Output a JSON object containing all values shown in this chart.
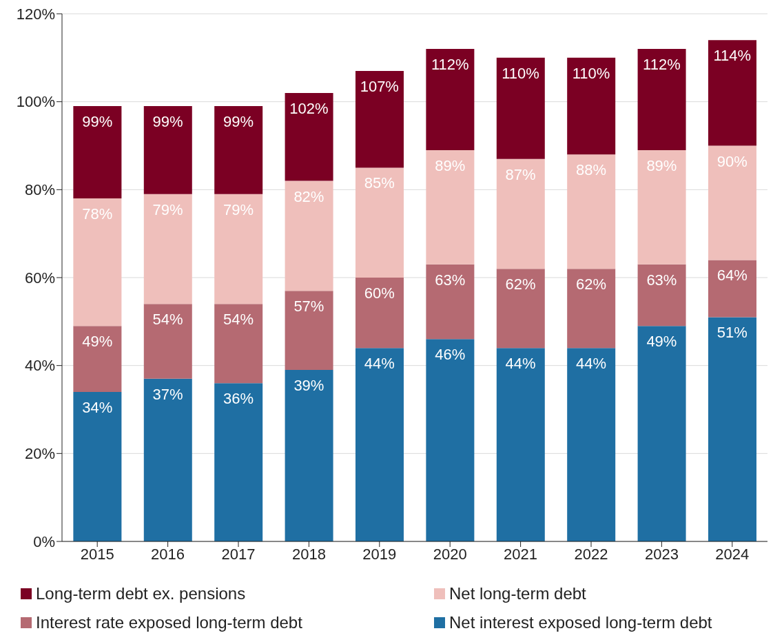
{
  "chart_data": {
    "type": "bar",
    "stacked": true,
    "categories": [
      "2015",
      "2016",
      "2017",
      "2018",
      "2019",
      "2020",
      "2021",
      "2022",
      "2023",
      "2024"
    ],
    "series": [
      {
        "name": "Net interest exposed long-term debt",
        "color": "#1f6fa3",
        "values": [
          34,
          37,
          36,
          39,
          44,
          46,
          44,
          44,
          49,
          51
        ]
      },
      {
        "name": "Interest rate exposed long-term debt",
        "color": "#b56a72",
        "values": [
          15,
          17,
          18,
          18,
          16,
          17,
          18,
          18,
          14,
          13
        ]
      },
      {
        "name": "Net long-term debt",
        "color": "#efbfbb",
        "values": [
          29,
          25,
          25,
          25,
          25,
          26,
          25,
          26,
          26,
          26
        ]
      },
      {
        "name": "Long-term debt ex. pensions",
        "color": "#7b0023",
        "values": [
          21,
          20,
          20,
          20,
          22,
          23,
          23,
          22,
          23,
          24
        ]
      }
    ],
    "annotations": [
      {
        "text": "34%",
        "x": "2015",
        "y": 34
      },
      {
        "text": "37%",
        "x": "2016",
        "y": 37
      },
      {
        "text": "36%",
        "x": "2017",
        "y": 36
      },
      {
        "text": "39%",
        "x": "2018",
        "y": 39
      },
      {
        "text": "44%",
        "x": "2019",
        "y": 44
      },
      {
        "text": "46%",
        "x": "2020",
        "y": 46
      },
      {
        "text": "44%",
        "x": "2021",
        "y": 44
      },
      {
        "text": "44%",
        "x": "2022",
        "y": 44
      },
      {
        "text": "49%",
        "x": "2023",
        "y": 49
      },
      {
        "text": "51%",
        "x": "2024",
        "y": 51
      },
      {
        "text": "49%",
        "x": "2015",
        "y": 49
      },
      {
        "text": "54%",
        "x": "2016",
        "y": 54
      },
      {
        "text": "54%",
        "x": "2017",
        "y": 54
      },
      {
        "text": "57%",
        "x": "2018",
        "y": 57
      },
      {
        "text": "60%",
        "x": "2019",
        "y": 60
      },
      {
        "text": "63%",
        "x": "2020",
        "y": 63
      },
      {
        "text": "62%",
        "x": "2021",
        "y": 62
      },
      {
        "text": "62%",
        "x": "2022",
        "y": 62
      },
      {
        "text": "63%",
        "x": "2023",
        "y": 63
      },
      {
        "text": "64%",
        "x": "2024",
        "y": 64
      },
      {
        "text": "78%",
        "x": "2015",
        "y": 78
      },
      {
        "text": "79%",
        "x": "2016",
        "y": 79
      },
      {
        "text": "79%",
        "x": "2017",
        "y": 79
      },
      {
        "text": "82%",
        "x": "2018",
        "y": 82
      },
      {
        "text": "85%",
        "x": "2019",
        "y": 85
      },
      {
        "text": "89%",
        "x": "2020",
        "y": 89
      },
      {
        "text": "87%",
        "x": "2021",
        "y": 87
      },
      {
        "text": "88%",
        "x": "2022",
        "y": 88
      },
      {
        "text": "89%",
        "x": "2023",
        "y": 89
      },
      {
        "text": "90%",
        "x": "2024",
        "y": 90
      },
      {
        "text": "99%",
        "x": "2015",
        "y": 99
      },
      {
        "text": "99%",
        "x": "2016",
        "y": 99
      },
      {
        "text": "99%",
        "x": "2017",
        "y": 99
      },
      {
        "text": "102%",
        "x": "2018",
        "y": 102
      },
      {
        "text": "107%",
        "x": "2019",
        "y": 107
      },
      {
        "text": "112%",
        "x": "2020",
        "y": 112
      },
      {
        "text": "110%",
        "x": "2021",
        "y": 110
      },
      {
        "text": "110%",
        "x": "2022",
        "y": 110
      },
      {
        "text": "112%",
        "x": "2023",
        "y": 112
      },
      {
        "text": "114%",
        "x": "2024",
        "y": 114
      }
    ],
    "ylim": [
      0,
      120
    ],
    "yticks": [
      {
        "value": 0,
        "label": "0%"
      },
      {
        "value": 20,
        "label": "20%"
      },
      {
        "value": 40,
        "label": "40%"
      },
      {
        "value": 60,
        "label": "60%"
      },
      {
        "value": 80,
        "label": "80%"
      },
      {
        "value": 100,
        "label": "100%"
      },
      {
        "value": 120,
        "label": "120%"
      }
    ],
    "grid": "y",
    "legend": "bottom"
  }
}
